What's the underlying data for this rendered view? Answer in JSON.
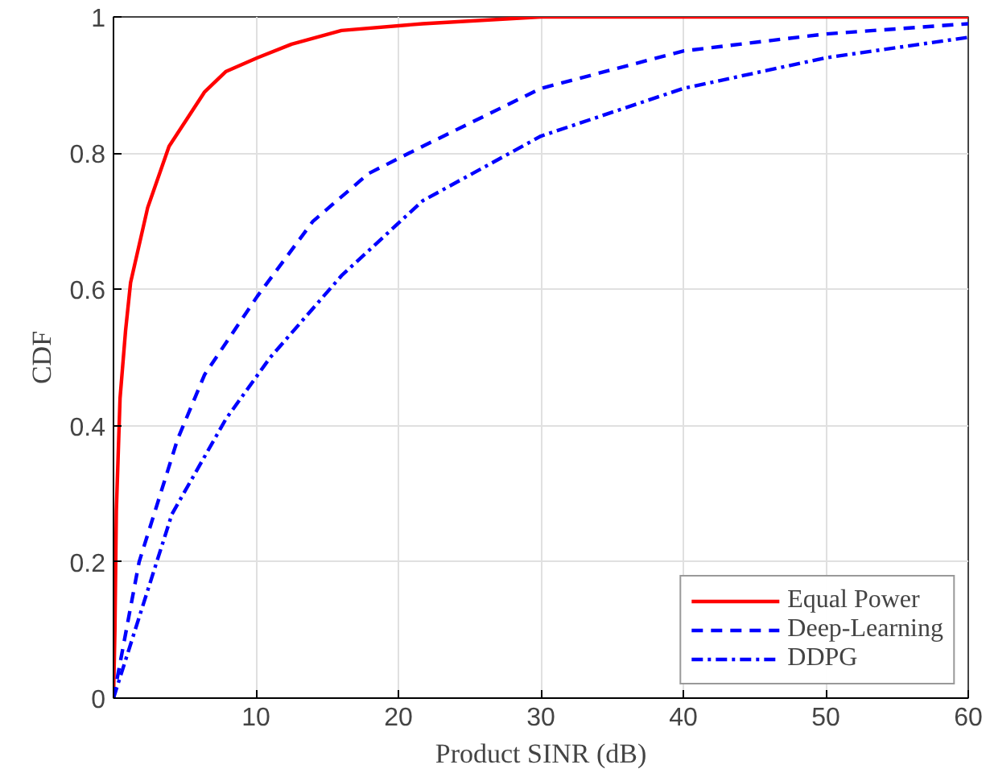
{
  "chart_data": {
    "type": "line",
    "xlabel": "Product SINR (dB)",
    "ylabel": "CDF",
    "xlim": [
      0,
      60
    ],
    "ylim": [
      0,
      1
    ],
    "xticks": [
      10,
      20,
      30,
      40,
      50,
      60
    ],
    "yticks": [
      0,
      0.2,
      0.4,
      0.6,
      0.8,
      1
    ],
    "grid": true,
    "legend": "bottom right",
    "marker": "none",
    "series": [
      {
        "name": "Equal Power",
        "color": "#ff0000",
        "line_style": "solid",
        "x": [
          0,
          0.1,
          0.2,
          0.46,
          0.85,
          1.2,
          2.4,
          3.9,
          6.4,
          7.9,
          10.1,
          12.5,
          16,
          21.7,
          30,
          40,
          50,
          60
        ],
        "values": [
          0,
          0.1,
          0.275,
          0.44,
          0.54,
          0.61,
          0.72,
          0.81,
          0.89,
          0.92,
          0.94,
          0.96,
          0.98,
          0.99,
          1,
          1,
          1,
          1
        ]
      },
      {
        "name": "Deep-Learning",
        "color": "#0000ff",
        "line_style": "dashed",
        "x": [
          0,
          1.8,
          4.5,
          6.4,
          10.1,
          14,
          17.9,
          21.7,
          30,
          40,
          50,
          60
        ],
        "values": [
          0,
          0.2,
          0.38,
          0.475,
          0.59,
          0.7,
          0.77,
          0.81,
          0.895,
          0.95,
          0.975,
          0.99
        ]
      },
      {
        "name": "DDPG",
        "color": "#0000ff",
        "line_style": "dashdot",
        "x": [
          0,
          4.1,
          7.9,
          11,
          16,
          21.7,
          30,
          40,
          50,
          60
        ],
        "values": [
          0,
          0.27,
          0.41,
          0.5,
          0.62,
          0.73,
          0.825,
          0.895,
          0.94,
          0.97
        ]
      }
    ]
  }
}
